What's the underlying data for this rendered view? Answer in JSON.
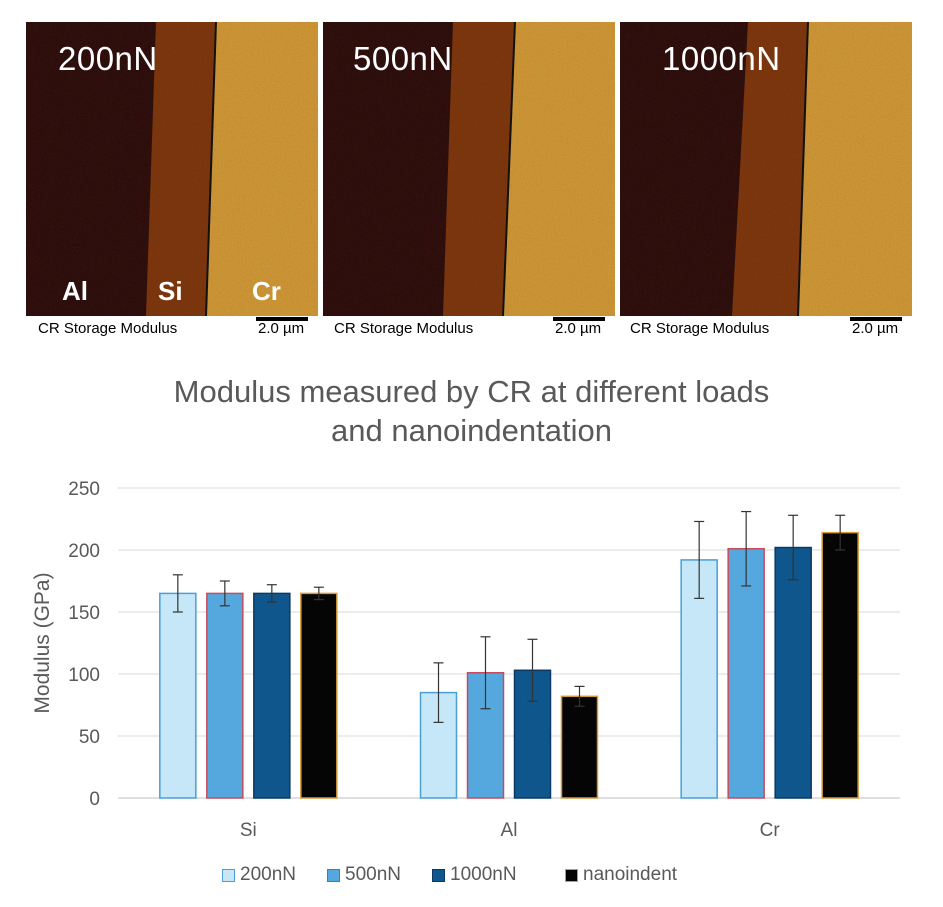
{
  "panels": [
    {
      "load_label": "200nN",
      "caption": "CR Storage Modulus",
      "scale": "2.0 µm",
      "material_labels": [
        "Al",
        "Si",
        "Cr"
      ]
    },
    {
      "load_label": "500nN",
      "caption": "CR Storage Modulus",
      "scale": "2.0 µm"
    },
    {
      "load_label": "1000nN",
      "caption": "CR Storage Modulus",
      "scale": "2.0 µm"
    }
  ],
  "chart_data": {
    "type": "bar",
    "title": "Modulus measured by CR at different loads and nanoindentation",
    "title_lines": [
      "Modulus measured by CR at different loads",
      "and nanoindentation"
    ],
    "ylabel": "Modulus (GPa)",
    "xlabel": "",
    "ylim": [
      0,
      250
    ],
    "yticks": [
      0,
      50,
      100,
      150,
      200,
      250
    ],
    "grid": true,
    "legend_position": "bottom",
    "categories": [
      "Si",
      "Al",
      "Cr"
    ],
    "series": [
      {
        "name": "200nN",
        "values": [
          165,
          85,
          192
        ],
        "errors": [
          15,
          24,
          31
        ],
        "fill": "#c6e7f7",
        "stroke": "#4a9fd3"
      },
      {
        "name": "500nN",
        "values": [
          165,
          101,
          201
        ],
        "errors": [
          10,
          29,
          30
        ],
        "fill": "#55a8de",
        "stroke": "#c94a5e"
      },
      {
        "name": "1000nN",
        "values": [
          165,
          103,
          202
        ],
        "errors": [
          7,
          25,
          26
        ],
        "fill": "#0f568c",
        "stroke": "#0a3a63"
      },
      {
        "name": "nanoindent",
        "values": [
          165,
          82,
          214
        ],
        "errors": [
          5,
          8,
          14
        ],
        "fill": "#050505",
        "stroke": "#d49a3a"
      }
    ]
  }
}
